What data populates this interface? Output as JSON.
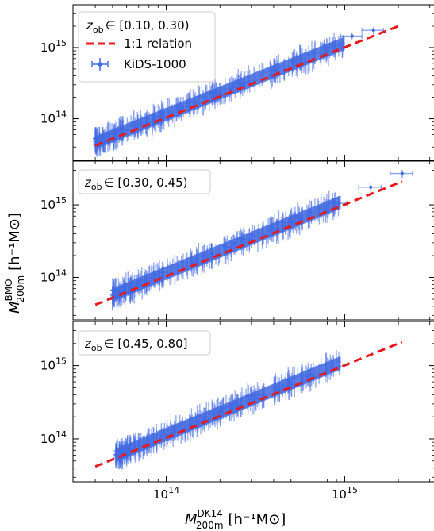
{
  "chart_data": {
    "type": "scatter",
    "x_axis": {
      "label_main": "M",
      "label_sup": "DK14",
      "label_sub": "200m",
      "label_unit": "[h⁻¹M⊙]",
      "scale": "log",
      "range": [
        30000000000000.0,
        3200000000000000.0
      ],
      "ticks": [
        {
          "value": 100000000000000.0,
          "base": "10",
          "exp": "14"
        },
        {
          "value": 1000000000000000.0,
          "base": "10",
          "exp": "15"
        }
      ]
    },
    "y_axis": {
      "label_main": "M",
      "label_sup": "BMO",
      "label_sub": "200m",
      "label_unit": "[h⁻¹M⊙]",
      "scale": "log",
      "range": [
        26000000000000.0,
        4000000000000000.0
      ],
      "ticks": [
        {
          "value": 100000000000000.0,
          "base": "10",
          "exp": "14"
        },
        {
          "value": 1000000000000000.0,
          "base": "10",
          "exp": "15"
        }
      ]
    },
    "reference_line": {
      "label": "1:1 relation",
      "color": "#e41a1c",
      "x": [
        40000000000000.0,
        2100000000000000.0
      ],
      "y": [
        42000000000000.0,
        2100000000000000.0
      ]
    },
    "series_color": "#4169e1",
    "legend": {
      "placement": "top-left",
      "panel": 0
    },
    "panels": [
      {
        "label_var": "z",
        "label_sub": "ob",
        "label_range": "∈ [0.10, 0.30)",
        "series": {
          "name": "KiDS-1000",
          "x_min": 40000000000000.0,
          "x_max": 1000000000000000.0,
          "outliers": [
            {
              "x": 1450000000000000.0,
              "y": 1750000000000000.0,
              "xerr": 200000000000000.0,
              "yerr": 200000000000000.0
            },
            {
              "x": 1100000000000000.0,
              "y": 1450000000000000.0,
              "xerr": 150000000000000.0,
              "yerr": 150000000000000.0
            },
            {
              "x": 850000000000000.0,
              "y": 1100000000000000.0,
              "xerr": 100000000000000.0,
              "yerr": 120000000000000.0
            }
          ]
        }
      },
      {
        "label_var": "z",
        "label_sub": "ob",
        "label_range": "∈ [0.30, 0.45)",
        "series": {
          "name": "KiDS-1000",
          "x_min": 50000000000000.0,
          "x_max": 950000000000000.0,
          "outliers": [
            {
              "x": 2100000000000000.0,
              "y": 2700000000000000.0,
              "xerr": 300000000000000.0,
              "yerr": 350000000000000.0
            },
            {
              "x": 1400000000000000.0,
              "y": 1750000000000000.0,
              "xerr": 200000000000000.0,
              "yerr": 250000000000000.0
            },
            {
              "x": 930000000000000.0,
              "y": 1050000000000000.0,
              "xerr": 100000000000000.0,
              "yerr": 120000000000000.0
            }
          ]
        }
      },
      {
        "label_var": "z",
        "label_sub": "ob",
        "label_range": "∈ [0.45, 0.80]",
        "series": {
          "name": "KiDS-1000",
          "x_min": 52000000000000.0,
          "x_max": 950000000000000.0,
          "outliers": []
        }
      }
    ]
  }
}
